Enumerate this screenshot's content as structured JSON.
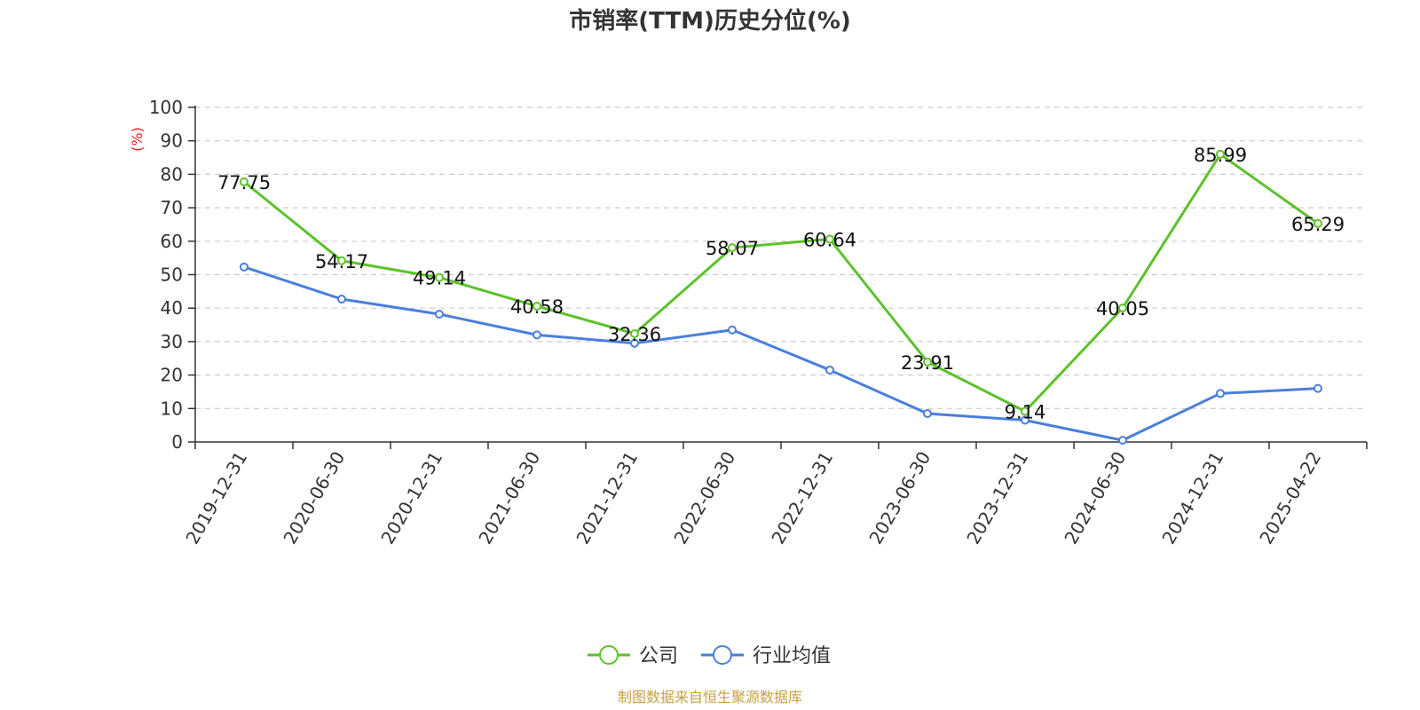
{
  "chart_data": {
    "type": "line",
    "title": "市销率(TTM)历史分位(%)",
    "ylabel": "(%)",
    "ylim": [
      0,
      100
    ],
    "yticks": [
      0,
      10,
      20,
      30,
      40,
      50,
      60,
      70,
      80,
      90,
      100
    ],
    "grid": true,
    "legend_position": "bottom",
    "categories": [
      "2019-12-31",
      "2020-06-30",
      "2020-12-31",
      "2021-06-30",
      "2021-12-31",
      "2022-06-30",
      "2022-12-31",
      "2023-06-30",
      "2023-12-31",
      "2024-06-30",
      "2024-12-31",
      "2025-04-22"
    ],
    "series": [
      {
        "name": "公司",
        "color": "#5cc22b",
        "values": [
          77.75,
          54.17,
          49.14,
          40.58,
          32.36,
          58.07,
          60.64,
          23.91,
          9.14,
          40.05,
          85.99,
          65.29
        ],
        "labels": [
          "77.75",
          "54.17",
          "49.14",
          "40.58",
          "32.36",
          "58.07",
          "60.64",
          "23.91",
          "9.14",
          "40.05",
          "85.99",
          "65.29"
        ]
      },
      {
        "name": "行业均值",
        "color": "#4a7fdc",
        "values": [
          52.3,
          42.7,
          38.2,
          32.0,
          29.5,
          33.5,
          21.5,
          8.5,
          6.5,
          0.5,
          14.5,
          16.0
        ]
      }
    ],
    "source": "制图数据来自恒生聚源数据库"
  }
}
